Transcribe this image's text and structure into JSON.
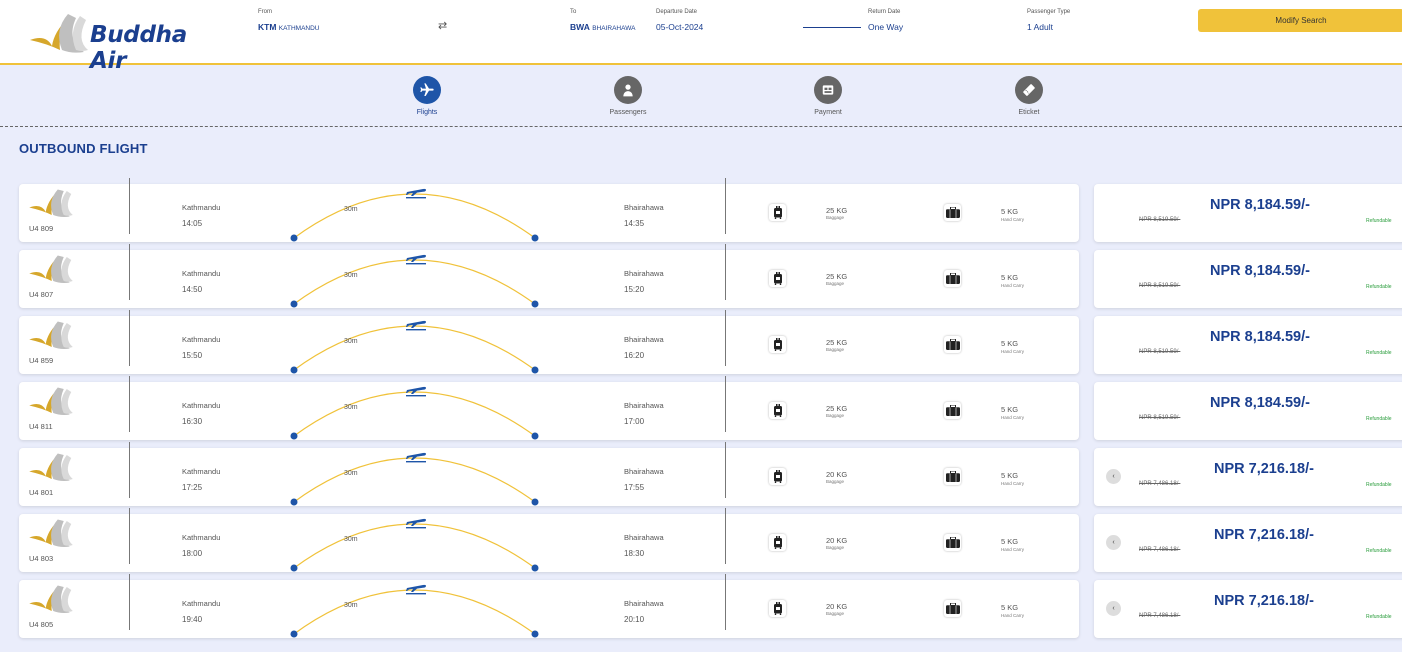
{
  "header": {
    "logo_text": "Buddha Air",
    "from_label": "From",
    "from_code": "KTM",
    "from_city": "KATHMANDU",
    "swap_icon": "⇄",
    "to_label": "To",
    "to_code": "BWA",
    "to_city": "BHAIRAHAWA",
    "departure_label": "Departure Date",
    "departure_value": "05-Oct-2024",
    "return_label": "Return Date",
    "return_value": "One Way",
    "passenger_label": "Passenger Type",
    "passenger_value": "1 Adult",
    "modify_label": "Modify Search"
  },
  "steps": [
    {
      "label": "Flights",
      "icon": "plane-icon",
      "active": true
    },
    {
      "label": "Passengers",
      "icon": "person-icon",
      "active": false
    },
    {
      "label": "Payment",
      "icon": "payment-icon",
      "active": false
    },
    {
      "label": "Eticket",
      "icon": "ticket-icon",
      "active": false
    }
  ],
  "section_title": "OUTBOUND FLIGHT",
  "flights": [
    {
      "code": "U4 809",
      "from": "Kathmandu",
      "dep": "14:05",
      "to": "Bhairahawa",
      "arr": "14:35",
      "duration": "30m",
      "baggage": "25 KG",
      "baggage_label": "Baggage",
      "hand": "5 KG",
      "hand_label": "Hand Carry",
      "price": "NPR 8,184.59/-",
      "old_price": "NPR 8,519.59/-",
      "refund": "Refundable",
      "has_prev": false
    },
    {
      "code": "U4 807",
      "from": "Kathmandu",
      "dep": "14:50",
      "to": "Bhairahawa",
      "arr": "15:20",
      "duration": "30m",
      "baggage": "25 KG",
      "baggage_label": "Baggage",
      "hand": "5 KG",
      "hand_label": "Hand Carry",
      "price": "NPR 8,184.59/-",
      "old_price": "NPR 8,519.59/-",
      "refund": "Refundable",
      "has_prev": false
    },
    {
      "code": "U4 859",
      "from": "Kathmandu",
      "dep": "15:50",
      "to": "Bhairahawa",
      "arr": "16:20",
      "duration": "30m",
      "baggage": "25 KG",
      "baggage_label": "Baggage",
      "hand": "5 KG",
      "hand_label": "Hand Carry",
      "price": "NPR 8,184.59/-",
      "old_price": "NPR 8,519.59/-",
      "refund": "Refundable",
      "has_prev": false
    },
    {
      "code": "U4 811",
      "from": "Kathmandu",
      "dep": "16:30",
      "to": "Bhairahawa",
      "arr": "17:00",
      "duration": "30m",
      "baggage": "25 KG",
      "baggage_label": "Baggage",
      "hand": "5 KG",
      "hand_label": "Hand Carry",
      "price": "NPR 8,184.59/-",
      "old_price": "NPR 8,519.59/-",
      "refund": "Refundable",
      "has_prev": false
    },
    {
      "code": "U4 801",
      "from": "Kathmandu",
      "dep": "17:25",
      "to": "Bhairahawa",
      "arr": "17:55",
      "duration": "30m",
      "baggage": "20 KG",
      "baggage_label": "Baggage",
      "hand": "5 KG",
      "hand_label": "Hand Carry",
      "price": "NPR 7,216.18/-",
      "old_price": "NPR 7,486.18/-",
      "refund": "Refundable",
      "has_prev": true
    },
    {
      "code": "U4 803",
      "from": "Kathmandu",
      "dep": "18:00",
      "to": "Bhairahawa",
      "arr": "18:30",
      "duration": "30m",
      "baggage": "20 KG",
      "baggage_label": "Baggage",
      "hand": "5 KG",
      "hand_label": "Hand Carry",
      "price": "NPR 7,216.18/-",
      "old_price": "NPR 7,486.18/-",
      "refund": "Refundable",
      "has_prev": true
    },
    {
      "code": "U4 805",
      "from": "Kathmandu",
      "dep": "19:40",
      "to": "Bhairahawa",
      "arr": "20:10",
      "duration": "30m",
      "baggage": "20 KG",
      "baggage_label": "Baggage",
      "hand": "5 KG",
      "hand_label": "Hand Carry",
      "price": "NPR 7,216.18/-",
      "old_price": "NPR 7,486.18/-",
      "refund": "Refundable",
      "has_prev": true
    }
  ],
  "prev_arrow": "‹",
  "colors": {
    "primary": "#1b3f8f",
    "accent": "#f0c23a",
    "active_step": "#1e55a8",
    "refund": "#2a9d3c"
  }
}
